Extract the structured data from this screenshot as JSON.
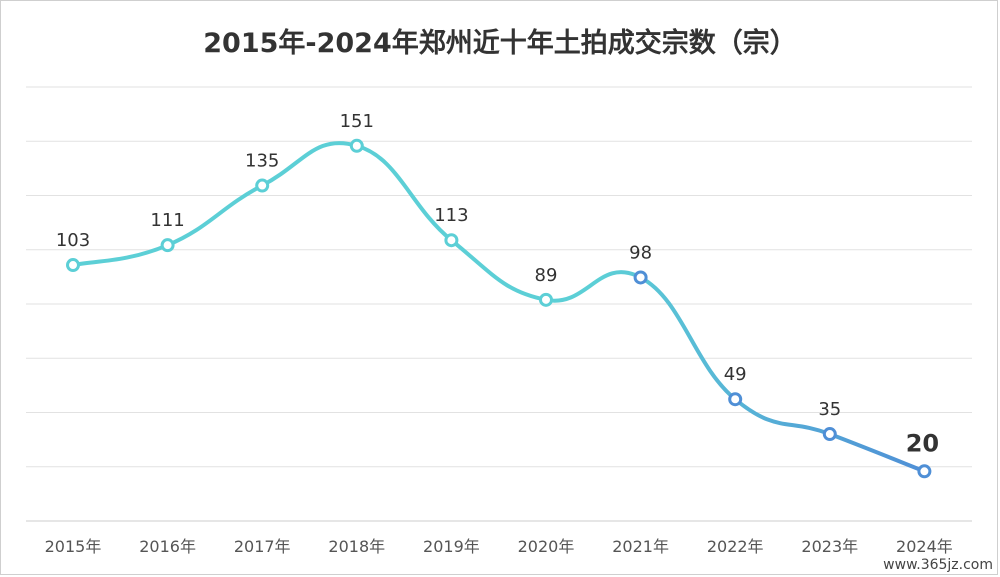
{
  "chart_data": {
    "type": "line",
    "title": "2015年-2024年郑州近十年土拍成交宗数（宗）",
    "categories": [
      "2015年",
      "2016年",
      "2017年",
      "2018年",
      "2019年",
      "2020年",
      "2021年",
      "2022年",
      "2023年",
      "2024年"
    ],
    "series": [
      {
        "values": [
          103,
          111,
          135,
          151,
          113,
          89,
          98,
          49,
          35,
          20
        ]
      }
    ],
    "xlabel": "",
    "ylabel": "",
    "ylim": [
      0,
      160
    ],
    "grid": true,
    "smooth": true,
    "colors": {
      "line_start": "#5ccfd6",
      "line_end": "#4f8fd6",
      "highlight_label": "#c00000",
      "grid": "#e2e2e2"
    },
    "highlight_index": 9
  },
  "watermark": "www.365jz.com"
}
